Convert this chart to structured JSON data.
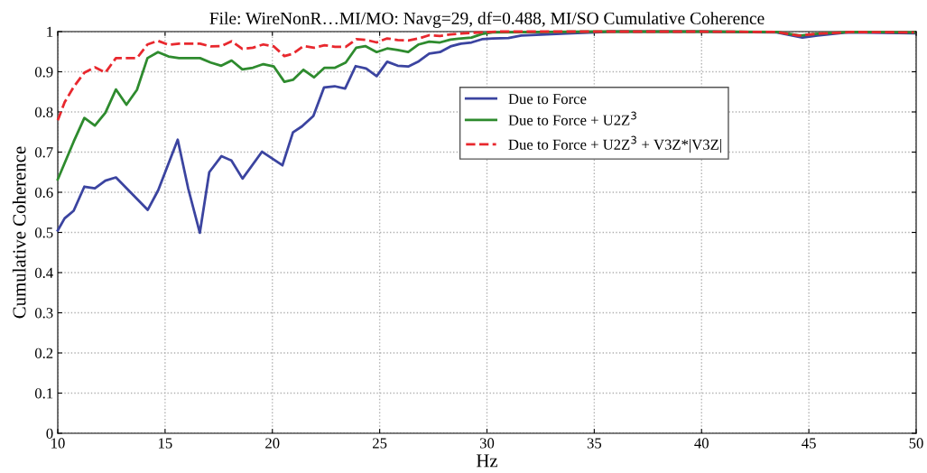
{
  "chart_data": {
    "type": "line",
    "title": "File: WireNonR…MI/MO: Navg=29, df=0.488, MI/SO Cumulative Coherence",
    "xlabel": "Hz",
    "ylabel": "Cumulative Coherence",
    "xlim": [
      10,
      50
    ],
    "xticks": [
      10,
      15,
      20,
      25,
      30,
      35,
      40,
      45,
      50
    ],
    "ylim": [
      0,
      1
    ],
    "yticks": [
      0,
      0.1,
      0.2,
      0.3,
      0.4,
      0.5,
      0.6,
      0.7,
      0.8,
      0.9,
      1
    ],
    "grid": true,
    "legend": "top right",
    "marker": "none",
    "line_style": "solid",
    "series": [
      {
        "name": "Due to Force",
        "color": "#3b44a0",
        "x": [
          10,
          10.32,
          10.74,
          11.24,
          11.73,
          12.22,
          12.71,
          14.19,
          14.68,
          15.59,
          16.08,
          16.62,
          17.06,
          17.63,
          18.09,
          18.61,
          19.52,
          20.47,
          20.96,
          21.38,
          21.91,
          22.41,
          22.9,
          23.39,
          23.88,
          24.37,
          24.86,
          25.35,
          25.84,
          26.33,
          26.82,
          27.31,
          27.81,
          28.3,
          28.79,
          29.28,
          29.77,
          30.26,
          31.0,
          31.6,
          33.7,
          35.8,
          40,
          43.5,
          44.7,
          45.4,
          46.8,
          49.9
        ],
        "values": [
          0.505,
          0.535,
          0.554,
          0.614,
          0.61,
          0.629,
          0.637,
          0.556,
          0.605,
          0.731,
          0.609,
          0.499,
          0.65,
          0.69,
          0.679,
          0.634,
          0.701,
          0.667,
          0.749,
          0.764,
          0.79,
          0.861,
          0.864,
          0.858,
          0.914,
          0.908,
          0.889,
          0.925,
          0.915,
          0.913,
          0.926,
          0.945,
          0.949,
          0.963,
          0.97,
          0.973,
          0.981,
          0.983,
          0.984,
          0.99,
          0.995,
          1.0,
          1.0,
          0.998,
          0.985,
          0.99,
          0.998,
          0.996
        ]
      },
      {
        "name": "Due to Force + U2Z$^{3}$",
        "color": "#2e8b2e",
        "x": [
          10,
          10.74,
          11.24,
          11.73,
          12.22,
          12.71,
          13.2,
          13.69,
          14.18,
          14.67,
          15.16,
          15.65,
          16.63,
          17.12,
          17.62,
          18.1,
          18.6,
          19.09,
          19.58,
          20.07,
          20.56,
          20.96,
          21.45,
          21.94,
          22.43,
          22.92,
          23.42,
          23.91,
          24.33,
          24.86,
          25.35,
          25.84,
          26.33,
          26.82,
          27.31,
          27.81,
          28.3,
          28.79,
          29.28,
          29.77,
          30.26,
          35,
          40,
          43.5,
          44.6,
          45.5,
          47,
          49.9
        ],
        "values": [
          0.632,
          0.726,
          0.785,
          0.766,
          0.798,
          0.856,
          0.818,
          0.855,
          0.934,
          0.949,
          0.938,
          0.934,
          0.934,
          0.923,
          0.915,
          0.928,
          0.906,
          0.91,
          0.919,
          0.913,
          0.875,
          0.88,
          0.905,
          0.886,
          0.91,
          0.91,
          0.923,
          0.96,
          0.964,
          0.949,
          0.958,
          0.954,
          0.949,
          0.968,
          0.975,
          0.973,
          0.98,
          0.983,
          0.985,
          0.994,
          0.998,
          1.0,
          1.0,
          0.999,
          0.99,
          0.995,
          0.999,
          0.998
        ]
      },
      {
        "name": "Due to Force + U2Z$^{3}$ + V3Z*|V3Z|",
        "color": "#e8282e",
        "line_style": "dashed",
        "x": [
          10,
          10.32,
          10.74,
          11.24,
          11.73,
          12.22,
          12.71,
          13.69,
          14.18,
          14.67,
          15.16,
          15.65,
          16.63,
          17.12,
          17.62,
          18.1,
          18.6,
          19.09,
          19.58,
          20.07,
          20.56,
          20.96,
          21.45,
          21.94,
          22.43,
          22.92,
          23.42,
          23.91,
          24.4,
          24.86,
          25.35,
          25.84,
          26.33,
          26.82,
          27.31,
          27.81,
          28.3,
          28.79,
          29.28,
          29.77,
          30.5,
          35,
          40,
          43.5,
          44.5,
          45.5,
          47,
          49.9
        ],
        "values": [
          0.779,
          0.824,
          0.862,
          0.898,
          0.911,
          0.898,
          0.934,
          0.934,
          0.968,
          0.977,
          0.967,
          0.97,
          0.97,
          0.963,
          0.964,
          0.976,
          0.957,
          0.96,
          0.968,
          0.963,
          0.939,
          0.945,
          0.964,
          0.96,
          0.966,
          0.962,
          0.962,
          0.981,
          0.979,
          0.973,
          0.983,
          0.979,
          0.978,
          0.983,
          0.991,
          0.989,
          0.993,
          0.995,
          0.997,
          0.998,
          1.0,
          1.0,
          1.0,
          0.999,
          0.99,
          0.995,
          0.999,
          0.998
        ]
      }
    ]
  }
}
